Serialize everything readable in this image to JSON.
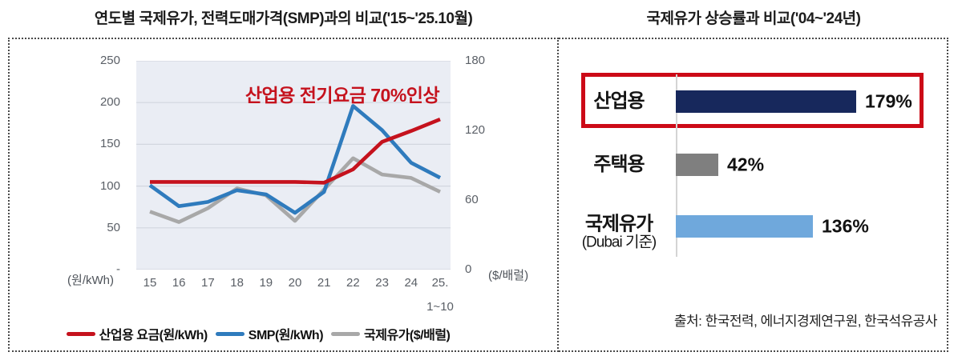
{
  "left_panel": {
    "title": "연도별 국제유가, 전력도매가격(SMP)과의 비교('15~'25.10월)",
    "annotation": "산업용 전기요금 70%인상",
    "y_left_unit": "(원/kWh)",
    "y_right_unit": "($/배럴)",
    "y_left_tick_labels": [
      "250",
      "200",
      "150",
      "100",
      "50",
      "-"
    ],
    "y_right_tick_labels": [
      "180",
      "120",
      "60",
      "0"
    ],
    "x_sub_label": "1~10"
  },
  "right_panel": {
    "title": "국제유가 상승률과 비교('04~'24년)",
    "source": "출처: 한국전력, 에너지경제연구원, 한국석유공사"
  },
  "colors": {
    "industrial_line": "#c5121d",
    "smp_line": "#2f7bbd",
    "oil_line": "#a8a8a8",
    "plot_background": "#eaedf4",
    "gridline": "#d2d6df",
    "navy_bar": "#17285c",
    "gray_bar": "#7f7f7f",
    "blue_bar": "#6fa8dc",
    "highlight_red": "#cc0a17"
  },
  "chart_data": [
    {
      "type": "line",
      "title": "연도별 국제유가, 전력도매가격(SMP)과의 비교('15~'25.10월)",
      "x": [
        "15",
        "16",
        "17",
        "18",
        "19",
        "20",
        "21",
        "22",
        "23",
        "24",
        "25."
      ],
      "x_last_note": "1~10",
      "y_left": {
        "label": "(원/kWh)",
        "range": [
          0,
          250
        ],
        "ticks": [
          250,
          200,
          150,
          100,
          50,
          0
        ]
      },
      "y_right": {
        "label": "($/배럴)",
        "range": [
          0,
          180
        ],
        "ticks": [
          180,
          120,
          60,
          0
        ]
      },
      "grid": true,
      "legend_position": "bottom",
      "annotation": "산업용 전기요금 70%인상",
      "series": [
        {
          "name": "산업용 요금(원/kWh)",
          "axis": "left",
          "color": "#c5121d",
          "values": [
            105,
            105,
            105,
            105,
            105,
            105,
            104,
            120,
            153,
            166,
            180
          ]
        },
        {
          "name": "SMP(원/kWh)",
          "axis": "left",
          "color": "#2f7bbd",
          "values": [
            101,
            76,
            81,
            95,
            90,
            68,
            93,
            196,
            167,
            128,
            110
          ]
        },
        {
          "name": "국제유가($/배럴)",
          "axis": "right",
          "color": "#a8a8a8",
          "values": [
            50,
            41,
            53,
            70,
            64,
            42,
            69,
            96,
            82,
            79,
            67
          ]
        }
      ]
    },
    {
      "type": "bar",
      "orientation": "horizontal",
      "title": "국제유가 상승률과 비교('04~'24년)",
      "xlim": [
        0,
        200
      ],
      "rows": [
        {
          "label": "산업용",
          "sublabel": "",
          "value": 179,
          "display": "179%",
          "color": "#17285c",
          "highlighted": true
        },
        {
          "label": "주택용",
          "sublabel": "",
          "value": 42,
          "display": "42%",
          "color": "#7f7f7f",
          "highlighted": false
        },
        {
          "label": "국제유가",
          "sublabel": "(Dubai 기준)",
          "value": 136,
          "display": "136%",
          "color": "#6fa8dc",
          "highlighted": false
        }
      ]
    }
  ]
}
